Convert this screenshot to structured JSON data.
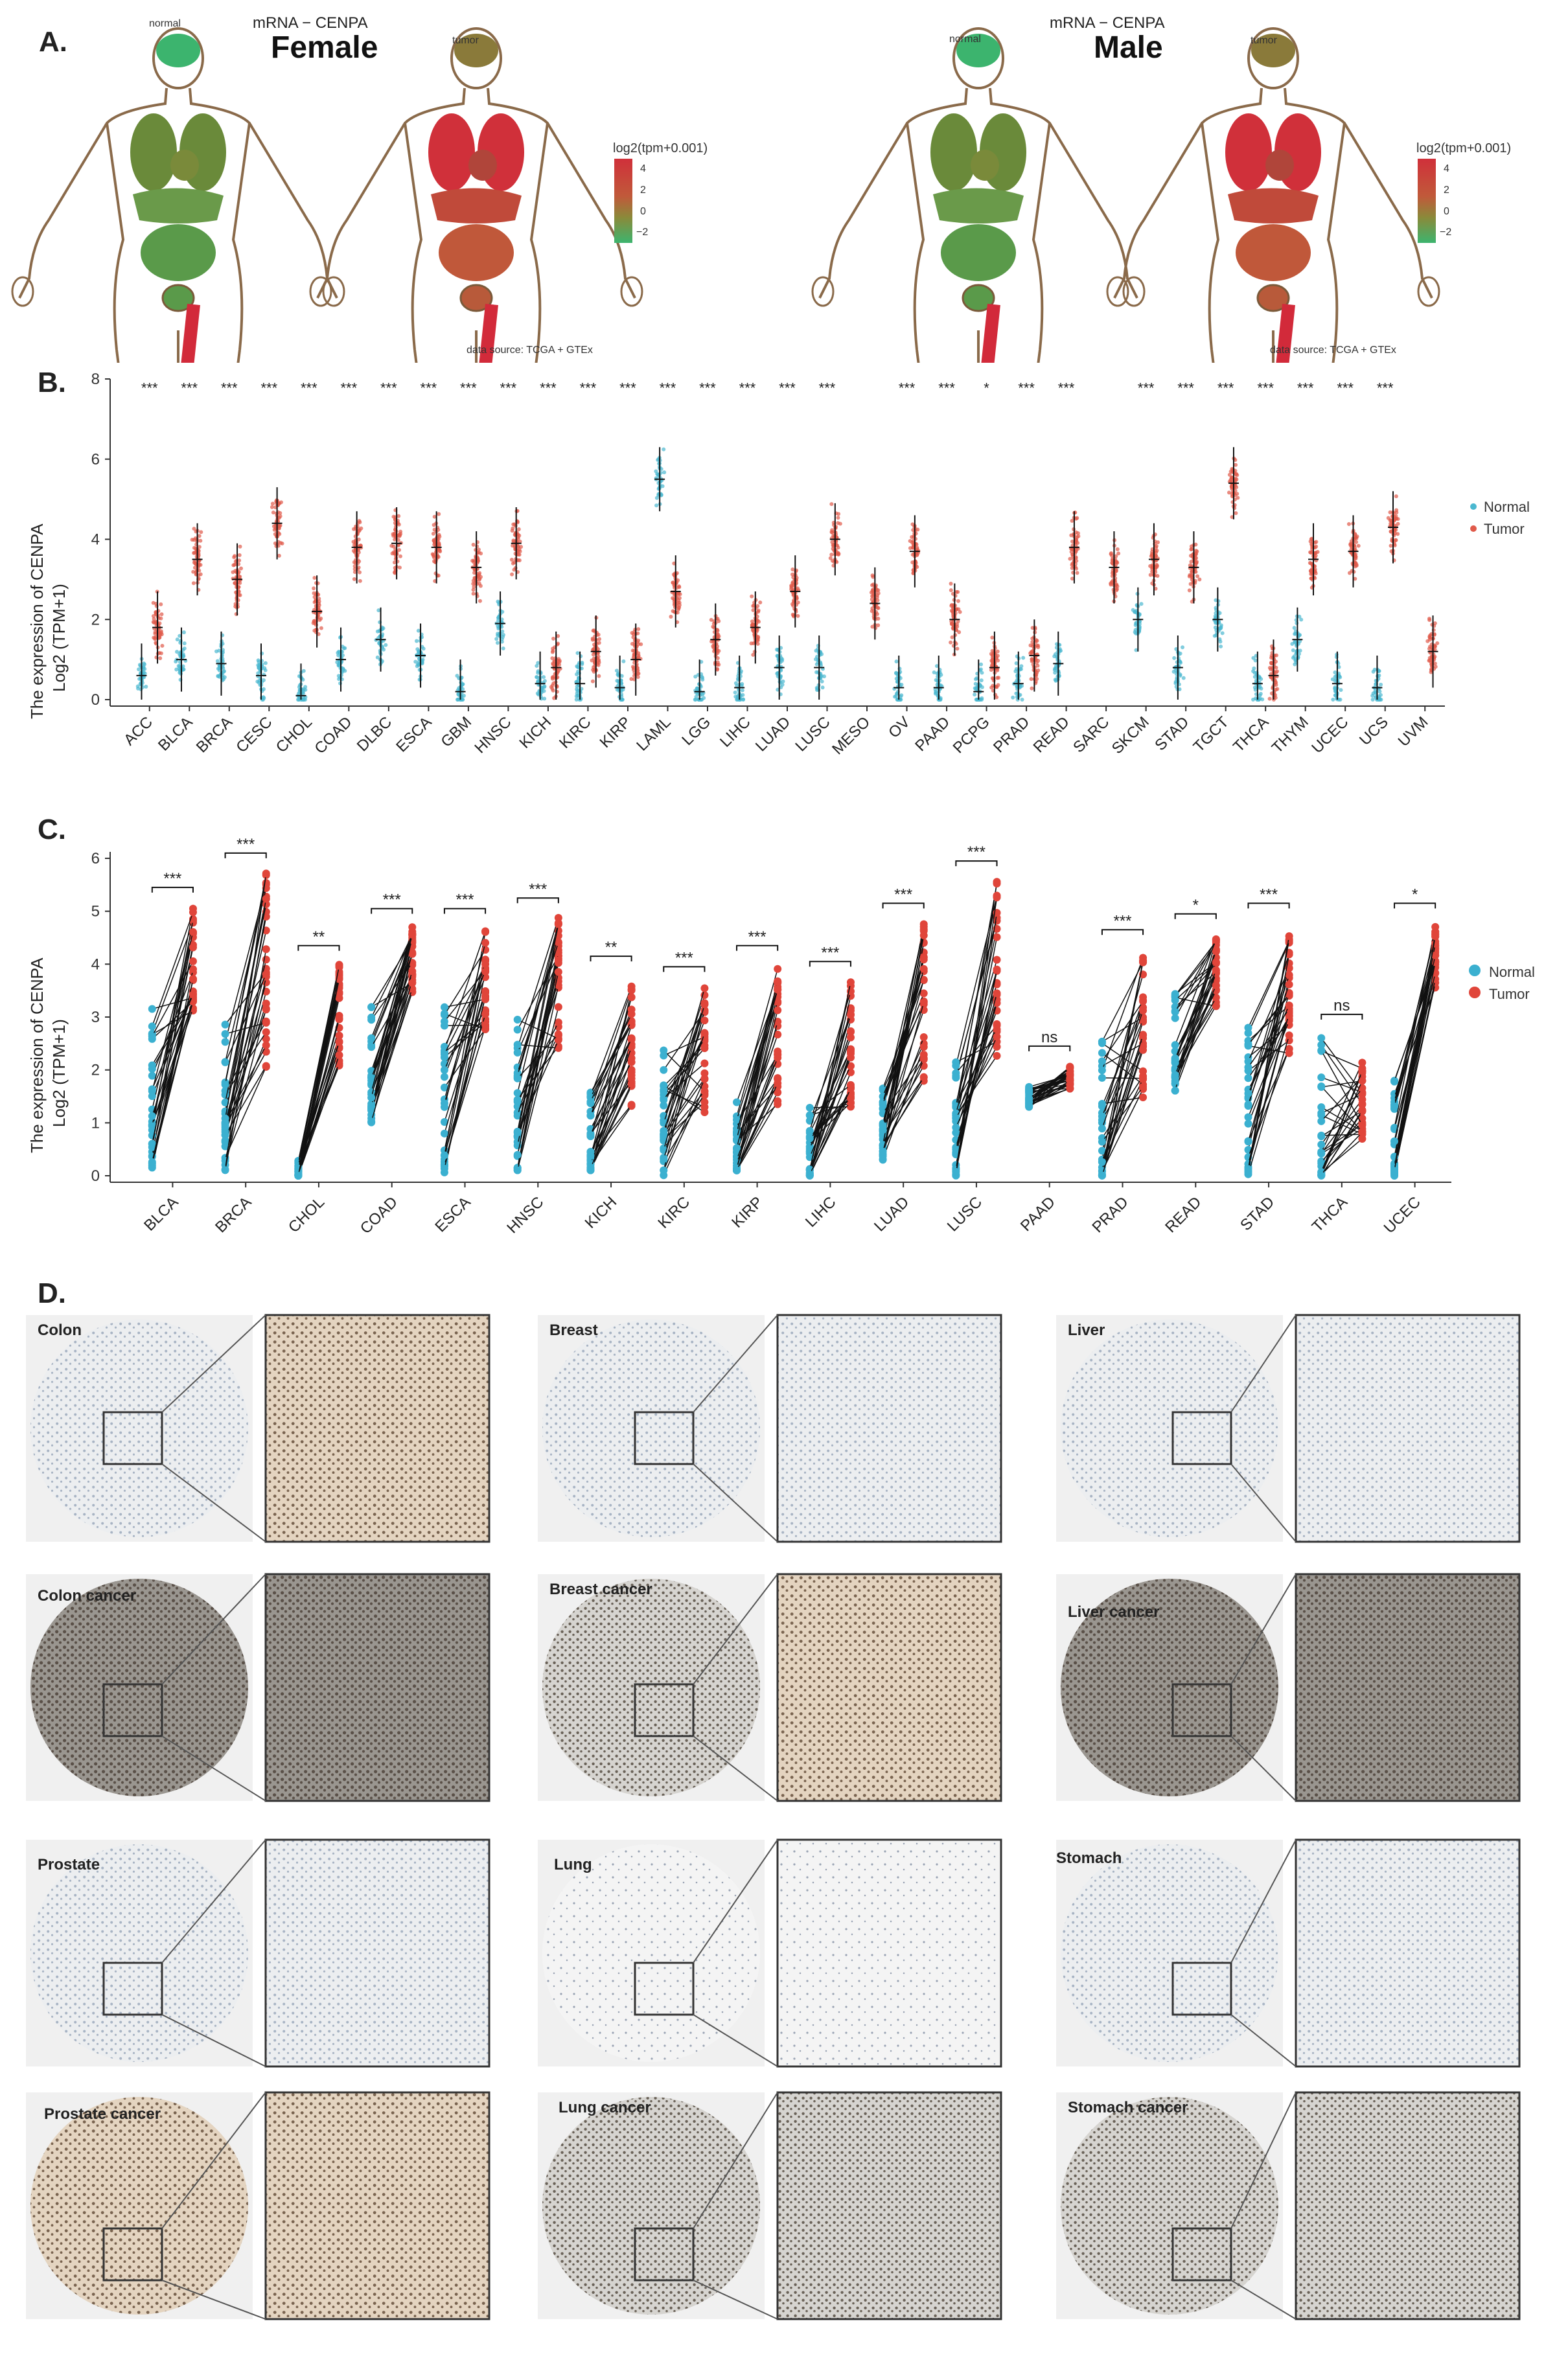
{
  "panels": {
    "A": "A.",
    "B": "B.",
    "C": "C.",
    "D": "D."
  },
  "panelA": {
    "female": {
      "subtitle": "mRNA − CENPA",
      "title": "Female",
      "normal_label": "normal",
      "tumor_label": "tumor",
      "legend_title": "log2(tpm+0.001)",
      "legend_ticks": [
        "4",
        "2",
        "0",
        "−2"
      ],
      "source": "data source: TCGA + GTEx"
    },
    "male": {
      "subtitle": "mRNA − CENPA",
      "title": "Male",
      "normal_label": "normal",
      "tumor_label": "tumor",
      "legend_title": "log2(tpm+0.001)",
      "legend_ticks": [
        "4",
        "2",
        "0",
        "−2"
      ],
      "source": "data source: TCGA + GTEx"
    },
    "colors": {
      "low": "#3cb46e",
      "mid": "#8a8a3a",
      "high": "#d0303a"
    }
  },
  "chart_data": [
    {
      "type": "scatter",
      "panel": "B",
      "ylabel_line1": "The expression of CENPA",
      "ylabel_line2": "Log2 (TPM+1)",
      "ylim": [
        0,
        8
      ],
      "yticks": [
        0,
        2,
        4,
        6,
        8
      ],
      "legend": [
        "Normal",
        "Tumor"
      ],
      "legend_position": "right",
      "colors": {
        "Normal": "#4bb8d0",
        "Tumor": "#e05a4a"
      },
      "categories": [
        "ACC",
        "BLCA",
        "BRCA",
        "CESC",
        "CHOL",
        "COAD",
        "DLBC",
        "ESCA",
        "GBM",
        "HNSC",
        "KICH",
        "KIRC",
        "KIRP",
        "LAML",
        "LGG",
        "LIHC",
        "LUAD",
        "LUSC",
        "MESO",
        "OV",
        "PAAD",
        "PCPG",
        "PRAD",
        "READ",
        "SARC",
        "SKCM",
        "STAD",
        "TGCT",
        "THCA",
        "THYM",
        "UCEC",
        "UCS",
        "UVM"
      ],
      "significance": [
        "***",
        "***",
        "***",
        "***",
        "***",
        "***",
        "***",
        "***",
        "***",
        "***",
        "***",
        "***",
        "***",
        "***",
        "***",
        "***",
        "***",
        "***",
        "",
        "***",
        "***",
        "*",
        "***",
        "***",
        "",
        "***",
        "***",
        "***",
        "***",
        "***",
        "***",
        "***",
        ""
      ],
      "normal_median": [
        0.6,
        1.0,
        0.9,
        0.6,
        0.1,
        1.0,
        1.5,
        1.1,
        0.2,
        1.9,
        0.4,
        0.4,
        0.3,
        5.5,
        0.2,
        0.3,
        0.8,
        0.8,
        null,
        0.3,
        0.3,
        0.2,
        0.4,
        0.9,
        null,
        2.0,
        0.8,
        2.0,
        0.4,
        1.5,
        0.4,
        0.3,
        null
      ],
      "tumor_median": [
        1.8,
        3.5,
        3.0,
        4.4,
        2.2,
        3.8,
        3.9,
        3.8,
        3.3,
        3.9,
        0.8,
        1.2,
        1.0,
        2.7,
        1.5,
        1.8,
        2.7,
        4.0,
        2.4,
        3.7,
        2.0,
        0.8,
        1.1,
        3.8,
        3.3,
        3.5,
        3.3,
        5.4,
        0.6,
        3.5,
        3.7,
        4.3,
        1.2
      ]
    },
    {
      "type": "line",
      "panel": "C",
      "ylabel_line1": "The expression of CENPA",
      "ylabel_line2": "Log2 (TPM+1)",
      "ylim": [
        0,
        6
      ],
      "yticks": [
        0,
        1,
        2,
        3,
        4,
        5,
        6
      ],
      "legend": [
        "Normal",
        "Tumor"
      ],
      "legend_position": "right",
      "colors": {
        "Normal": "#3bb0d0",
        "Tumor": "#e0453a"
      },
      "categories": [
        "BLCA",
        "BRCA",
        "CHOL",
        "COAD",
        "ESCA",
        "HNSC",
        "KICH",
        "KIRC",
        "KIRP",
        "LIHC",
        "LUAD",
        "LUSC",
        "PAAD",
        "PRAD",
        "READ",
        "STAD",
        "THCA",
        "UCEC"
      ],
      "significance": [
        "***",
        "***",
        "**",
        "***",
        "***",
        "***",
        "**",
        "***",
        "***",
        "***",
        "***",
        "***",
        "ns",
        "***",
        "*",
        "***",
        "ns",
        "*"
      ],
      "normal_range": [
        [
          0.1,
          3.2
        ],
        [
          0.1,
          3.0
        ],
        [
          0.0,
          0.3
        ],
        [
          1.0,
          3.3
        ],
        [
          0.0,
          3.2
        ],
        [
          0.1,
          3.4
        ],
        [
          0.1,
          1.6
        ],
        [
          0.0,
          2.5
        ],
        [
          0.1,
          1.4
        ],
        [
          0.0,
          1.4
        ],
        [
          0.3,
          1.7
        ],
        [
          0.0,
          2.4
        ],
        [
          1.3,
          1.7
        ],
        [
          0.0,
          2.6
        ],
        [
          1.6,
          3.5
        ],
        [
          0.0,
          2.8
        ],
        [
          0.0,
          2.7
        ],
        [
          0.0,
          2.0
        ]
      ],
      "tumor_range": [
        [
          2.0,
          5.1
        ],
        [
          0.3,
          6.0
        ],
        [
          1.2,
          4.0
        ],
        [
          2.9,
          4.7
        ],
        [
          1.9,
          4.7
        ],
        [
          1.3,
          4.9
        ],
        [
          0.1,
          3.8
        ],
        [
          0.1,
          3.6
        ],
        [
          0.2,
          4.0
        ],
        [
          0.2,
          3.7
        ],
        [
          0.5,
          4.8
        ],
        [
          0.6,
          5.6
        ],
        [
          1.4,
          2.1
        ],
        [
          0.2,
          4.3
        ],
        [
          2.6,
          4.6
        ],
        [
          1.2,
          4.8
        ],
        [
          0.0,
          2.2
        ],
        [
          2.8,
          4.8
        ]
      ]
    }
  ],
  "panelD": {
    "tissues": [
      "Colon",
      "Breast",
      "Liver",
      "Colon cancer",
      "Breast cancer",
      "Liver cancer",
      "Prostate",
      "Lung",
      "Stomach",
      "Prostate cancer",
      "Lung cancer",
      "Stomach cancer"
    ]
  }
}
